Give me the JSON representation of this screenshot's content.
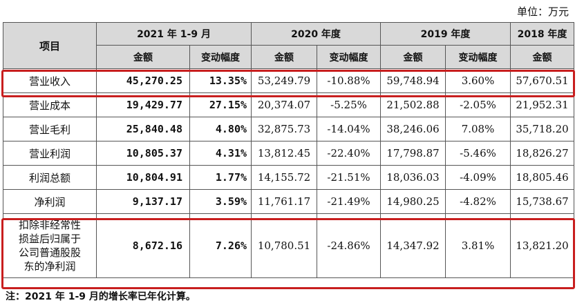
{
  "unit_label": "单位：万元",
  "header": {
    "item": "项目",
    "periods": [
      "2021 年 1-9 月",
      "2020 年度",
      "2019 年度",
      "2018 年度"
    ],
    "amount": "金额",
    "change": "变动幅度"
  },
  "rows": [
    {
      "label": "营业收入",
      "y2021_amount": "45,270.25",
      "y2021_change": "13.35%",
      "y2020_amount": "53,249.79",
      "y2020_change": "-10.88%",
      "y2019_amount": "59,748.94",
      "y2019_change": "3.60%",
      "y2018_amount": "57,670.51"
    },
    {
      "label": "营业成本",
      "y2021_amount": "19,429.77",
      "y2021_change": "27.15%",
      "y2020_amount": "20,374.07",
      "y2020_change": "-5.25%",
      "y2019_amount": "21,502.88",
      "y2019_change": "-2.05%",
      "y2018_amount": "21,952.31"
    },
    {
      "label": "营业毛利",
      "y2021_amount": "25,840.48",
      "y2021_change": "4.80%",
      "y2020_amount": "32,875.73",
      "y2020_change": "-14.04%",
      "y2019_amount": "38,246.06",
      "y2019_change": "7.08%",
      "y2018_amount": "35,718.20"
    },
    {
      "label": "营业利润",
      "y2021_amount": "10,805.37",
      "y2021_change": "4.31%",
      "y2020_amount": "13,812.45",
      "y2020_change": "-22.40%",
      "y2019_amount": "17,798.87",
      "y2019_change": "-5.46%",
      "y2018_amount": "18,826.27"
    },
    {
      "label": "利润总额",
      "y2021_amount": "10,804.91",
      "y2021_change": "1.77%",
      "y2020_amount": "14,155.72",
      "y2020_change": "-21.51%",
      "y2019_amount": "18,036.03",
      "y2019_change": "-4.09%",
      "y2018_amount": "18,805.46"
    },
    {
      "label": "净利润",
      "y2021_amount": "9,137.17",
      "y2021_change": "3.59%",
      "y2020_amount": "11,761.17",
      "y2020_change": "-21.49%",
      "y2019_amount": "14,980.25",
      "y2019_change": "-4.82%",
      "y2018_amount": "15,738.67"
    },
    {
      "label_lines": [
        "扣除非经常性",
        "损益后归属于",
        "公司普通股股",
        "东的净利润"
      ],
      "y2021_amount": "8,672.16",
      "y2021_change": "7.26%",
      "y2020_amount": "10,780.51",
      "y2020_change": "-24.86%",
      "y2019_amount": "14,347.92",
      "y2019_change": "3.81%",
      "y2018_amount": "13,821.20"
    }
  ],
  "note": "注：2021 年 1-9 月的增长率已年化计算。",
  "highlight_color": "#c81e1e",
  "header_bg": "#d9d9d9"
}
